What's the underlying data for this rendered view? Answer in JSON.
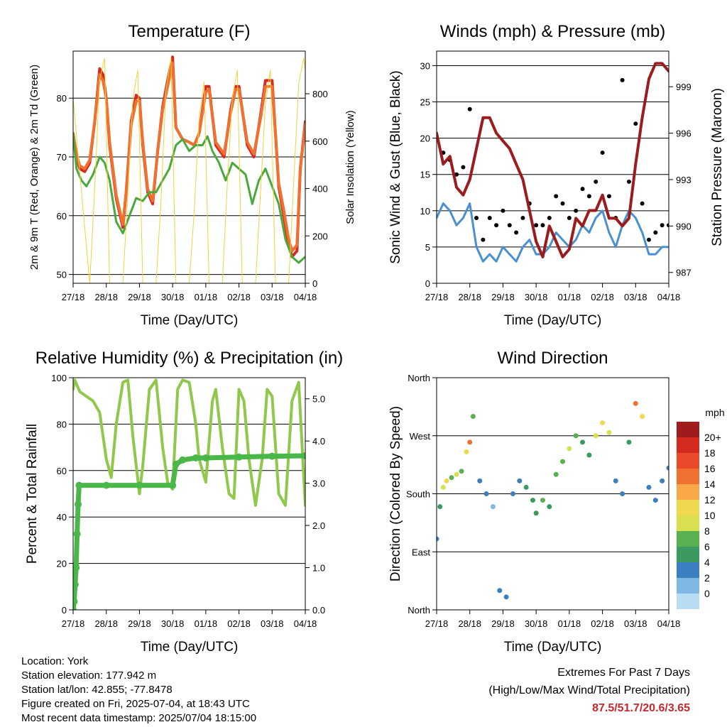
{
  "footer_left": {
    "location": "Location: York",
    "elevation": "Station elevation: 177.942 m",
    "latlon": "Station lat/lon: 42.855; -77.8478",
    "created": "Figure created on Fri, 2025-07-04, at 18:43 UTC",
    "recent": "Most recent data timestamp: 2025/07/04 18:15:00"
  },
  "footer_right": {
    "line1": "Extremes For Past 7 Days",
    "line2": "(High/Low/Max Wind/Total Precipitation)",
    "values": "87.5/51.7/20.6/3.65",
    "values_color": "#c8282d"
  },
  "chart_data": [
    {
      "id": "temperature",
      "type": "line",
      "title": "Temperature (F)",
      "xlabel": "Time (Day/UTC)",
      "ylabel": "2m & 9m T (Red, Orange) & 2m Td (Green)",
      "ylabel_right": "Solar Insolation (Yellow)",
      "x_ticks": [
        "27/18",
        "28/18",
        "29/18",
        "30/18",
        "01/18",
        "02/18",
        "03/18",
        "04/18"
      ],
      "xlim": [
        0,
        7
      ],
      "ylim": [
        48.5,
        88
      ],
      "y_ticks": [
        50,
        60,
        70,
        80
      ],
      "ylim_right": [
        0,
        980
      ],
      "y_ticks_right": [
        0,
        200,
        400,
        600,
        800
      ],
      "grid": "horizontal",
      "series": [
        {
          "name": "2m T",
          "color": "#d42a20",
          "x": [
            0,
            0.1,
            0.2,
            0.35,
            0.5,
            0.65,
            0.8,
            0.9,
            1.0,
            1.1,
            1.3,
            1.5,
            1.6,
            1.75,
            1.9,
            2.0,
            2.1,
            2.25,
            2.4,
            2.55,
            2.7,
            2.85,
            3.0,
            3.1,
            3.3,
            3.5,
            3.65,
            3.8,
            4.0,
            4.1,
            4.2,
            4.3,
            4.55,
            4.75,
            4.9,
            5.0,
            5.1,
            5.25,
            5.45,
            5.65,
            5.8,
            6.0,
            6.1,
            6.2,
            6.35,
            6.5,
            6.6,
            6.75,
            6.85,
            7.0
          ],
          "y": [
            74,
            70,
            68,
            67.5,
            69,
            76,
            85,
            84,
            80,
            72,
            63,
            58,
            64,
            76,
            80.5,
            80,
            72,
            64,
            62,
            71,
            78.5,
            83,
            87,
            75,
            73,
            72.5,
            72,
            74,
            82,
            82,
            77,
            72,
            70,
            78,
            82,
            82,
            78,
            72,
            70,
            77,
            83,
            83,
            74,
            65,
            60,
            55,
            53,
            54,
            68,
            76
          ]
        },
        {
          "name": "9m T",
          "color": "#f07030",
          "x": [
            0,
            0.1,
            0.2,
            0.35,
            0.5,
            0.65,
            0.8,
            0.9,
            1.0,
            1.1,
            1.3,
            1.5,
            1.6,
            1.75,
            1.9,
            2.0,
            2.1,
            2.25,
            2.4,
            2.55,
            2.7,
            2.85,
            3.0,
            3.1,
            3.3,
            3.5,
            3.65,
            3.8,
            4.0,
            4.1,
            4.2,
            4.3,
            4.55,
            4.75,
            4.9,
            5.0,
            5.1,
            5.25,
            5.45,
            5.65,
            5.8,
            6.0,
            6.1,
            6.2,
            6.35,
            6.5,
            6.6,
            6.75,
            6.85,
            7.0
          ],
          "y": [
            74,
            70.5,
            68.5,
            68,
            69.5,
            76,
            84,
            83,
            80,
            72.5,
            63.5,
            58.5,
            64,
            75.5,
            79.5,
            79.5,
            72.5,
            64.5,
            62.5,
            71,
            78,
            82,
            86,
            75,
            73,
            72.5,
            72,
            74,
            81,
            81.5,
            77,
            72.5,
            70.5,
            77.5,
            81.5,
            81.5,
            78,
            72.5,
            70.5,
            76.5,
            82,
            82,
            74,
            65.5,
            61,
            56,
            54,
            55,
            68,
            75.5
          ]
        },
        {
          "name": "2m Td",
          "color": "#4aa83c",
          "x": [
            0,
            0.1,
            0.25,
            0.4,
            0.6,
            0.8,
            0.95,
            1.1,
            1.3,
            1.5,
            1.7,
            1.9,
            2.1,
            2.3,
            2.5,
            2.7,
            2.9,
            3.0,
            3.1,
            3.3,
            3.5,
            3.7,
            3.9,
            4.05,
            4.2,
            4.4,
            4.6,
            4.8,
            5.0,
            5.2,
            5.4,
            5.6,
            5.8,
            6.0,
            6.2,
            6.4,
            6.6,
            6.8,
            7.0
          ],
          "y": [
            74,
            68,
            66,
            65,
            67,
            70,
            69,
            66,
            59,
            57,
            60,
            63,
            62.5,
            64,
            64,
            66,
            68,
            70,
            72,
            73,
            71,
            72,
            72,
            73.5,
            71,
            69,
            66,
            69,
            68,
            67,
            62,
            66,
            68,
            65,
            62,
            56,
            53,
            52,
            53
          ]
        },
        {
          "name": "Solar Insolation",
          "color": "#f2d33a",
          "axis": "right",
          "description": "daily diurnal peaks ~950 W/m2",
          "x": [
            0,
            0.5,
            0.65,
            0.8,
            0.95,
            1.1,
            1.5,
            1.65,
            1.8,
            1.95,
            2.1,
            2.5,
            2.65,
            2.8,
            2.95,
            3.1,
            3.5,
            3.65,
            3.8,
            3.95,
            4.1,
            4.5,
            4.65,
            4.8,
            4.95,
            5.1,
            5.5,
            5.65,
            5.8,
            5.95,
            6.1,
            6.5,
            6.65,
            6.8,
            6.95,
            7.0
          ],
          "y": [
            780,
            0,
            400,
            860,
            950,
            0,
            0,
            380,
            780,
            900,
            0,
            0,
            350,
            820,
            950,
            0,
            0,
            300,
            700,
            850,
            0,
            0,
            420,
            780,
            900,
            0,
            0,
            380,
            760,
            900,
            0,
            0,
            430,
            840,
            950,
            900
          ]
        }
      ]
    },
    {
      "id": "winds",
      "type": "scatter",
      "title": "Winds (mph) & Pressure (mb)",
      "xlabel": "Time (Day/UTC)",
      "ylabel": "Sonic Wind & Gust (Blue, Black)",
      "ylabel_right": "Station Pressure (Maroon)",
      "x_ticks": [
        "27/18",
        "28/18",
        "29/18",
        "30/18",
        "01/18",
        "02/18",
        "03/18",
        "04/18"
      ],
      "xlim": [
        0,
        7
      ],
      "ylim": [
        0,
        32
      ],
      "y_ticks": [
        0,
        5,
        10,
        15,
        20,
        25,
        30
      ],
      "ylim_right": [
        986.3,
        1001.3
      ],
      "y_ticks_right": [
        987,
        990,
        993,
        996,
        999
      ],
      "grid": "horizontal",
      "series": [
        {
          "name": "Sonic Wind",
          "color": "#4a90d0",
          "style": "line",
          "x": [
            0,
            0.2,
            0.4,
            0.6,
            0.8,
            1.0,
            1.2,
            1.4,
            1.6,
            1.8,
            2.0,
            2.2,
            2.4,
            2.6,
            2.8,
            3.0,
            3.2,
            3.4,
            3.6,
            3.8,
            4.0,
            4.2,
            4.4,
            4.6,
            4.8,
            5.0,
            5.2,
            5.4,
            5.6,
            5.8,
            6.0,
            6.2,
            6.4,
            6.6,
            6.8,
            7.0
          ],
          "y": [
            9,
            11,
            10,
            8,
            9,
            11,
            5,
            3,
            4,
            3,
            5,
            4,
            3,
            5,
            6,
            4,
            4,
            5,
            7,
            6,
            5,
            6,
            8,
            7,
            9,
            10,
            7,
            5,
            8,
            10,
            9,
            7,
            4,
            4,
            5,
            5
          ]
        },
        {
          "name": "Gust",
          "color": "#000000",
          "style": "dots",
          "x": [
            0,
            0.2,
            0.4,
            0.6,
            0.8,
            1.0,
            1.2,
            1.4,
            1.6,
            1.8,
            2.0,
            2.2,
            2.4,
            2.6,
            2.8,
            3.0,
            3.2,
            3.4,
            3.6,
            3.8,
            4.0,
            4.2,
            4.4,
            4.6,
            4.8,
            5.0,
            5.2,
            5.4,
            5.6,
            5.8,
            6.0,
            6.2,
            6.4,
            6.6,
            6.8,
            7.0
          ],
          "y": [
            20,
            18,
            17,
            15,
            16,
            24,
            9,
            6,
            9,
            8,
            10,
            8,
            7,
            9,
            11,
            8,
            8,
            9,
            12,
            11,
            9,
            10,
            13,
            12,
            14,
            18,
            12,
            9,
            28,
            14,
            22,
            11,
            6,
            7,
            8,
            8
          ]
        },
        {
          "name": "Station Pressure",
          "color": "#9b1c1c",
          "axis": "right",
          "style": "line",
          "x": [
            0,
            0.2,
            0.4,
            0.6,
            0.8,
            1.0,
            1.2,
            1.4,
            1.6,
            1.8,
            2.0,
            2.2,
            2.4,
            2.6,
            2.8,
            3.0,
            3.2,
            3.4,
            3.6,
            3.8,
            4.0,
            4.2,
            4.4,
            4.6,
            4.8,
            5.0,
            5.2,
            5.4,
            5.6,
            5.8,
            6.0,
            6.2,
            6.4,
            6.6,
            6.8,
            7.0
          ],
          "y": [
            996,
            994,
            994.5,
            992.5,
            992,
            993,
            995,
            997,
            997,
            996,
            995.5,
            995,
            994,
            993,
            991,
            989,
            988,
            990,
            989,
            988,
            988.5,
            990.5,
            990,
            991,
            991,
            992,
            990.5,
            990.5,
            990,
            990.5,
            994,
            997,
            999.5,
            1000.5,
            1000.5,
            1000
          ]
        }
      ]
    },
    {
      "id": "rh_precip",
      "type": "line",
      "title": "Relative Humidity (%) & Precipitation (in)",
      "xlabel": "Time (Day/UTC)",
      "ylabel": "Percent & Total Rainfall",
      "x_ticks": [
        "27/18",
        "28/18",
        "29/18",
        "30/18",
        "01/18",
        "02/18",
        "03/18",
        "04/18"
      ],
      "xlim": [
        0,
        7
      ],
      "ylim": [
        0,
        100
      ],
      "y_ticks": [
        0,
        20,
        40,
        60,
        80,
        100
      ],
      "ylim_right": [
        0,
        5.5
      ],
      "y_ticks_right": [
        "0.0",
        "1.0",
        "2.0",
        "3.0",
        "4.0",
        "5.0"
      ],
      "grid": "horizontal",
      "series": [
        {
          "name": "Relative Humidity",
          "color": "#8fc84a",
          "x": [
            0,
            0.05,
            0.2,
            0.4,
            0.6,
            0.8,
            1.0,
            1.15,
            1.3,
            1.5,
            1.65,
            1.8,
            2.0,
            2.1,
            2.3,
            2.5,
            2.7,
            2.85,
            3.0,
            3.15,
            3.3,
            3.5,
            3.7,
            3.8,
            4.0,
            4.2,
            4.3,
            4.5,
            4.7,
            4.85,
            5.0,
            5.15,
            5.3,
            5.5,
            5.7,
            5.85,
            6.0,
            6.2,
            6.4,
            6.6,
            6.8,
            7.0
          ],
          "y": [
            95,
            99,
            94,
            92,
            90,
            85,
            65,
            57,
            80,
            98,
            99,
            75,
            50,
            62,
            95,
            99,
            70,
            55,
            52,
            95,
            99,
            98,
            80,
            65,
            55,
            90,
            95,
            70,
            50,
            48,
            95,
            90,
            65,
            45,
            65,
            95,
            92,
            50,
            45,
            90,
            98,
            45
          ]
        },
        {
          "name": "Total Precipitation",
          "color": "#4ab848",
          "axis": "right",
          "x": [
            0,
            0.03,
            0.06,
            0.09,
            0.12,
            0.15,
            0.18,
            1.0,
            2.0,
            3.0,
            3.1,
            3.3,
            3.7,
            4.0,
            5.0,
            6.0,
            7.0
          ],
          "y": [
            0,
            0.2,
            0.6,
            1.0,
            1.8,
            2.5,
            2.95,
            2.95,
            2.95,
            2.95,
            3.45,
            3.55,
            3.6,
            3.6,
            3.62,
            3.64,
            3.65
          ]
        }
      ]
    },
    {
      "id": "wind_direction",
      "type": "scatter",
      "title": "Wind Direction",
      "xlabel": "Time (Day/UTC)",
      "ylabel": "Direction (Colored By Speed)",
      "x_ticks": [
        "27/18",
        "28/18",
        "29/18",
        "30/18",
        "01/18",
        "02/18",
        "03/18",
        "04/18"
      ],
      "xlim": [
        0,
        7
      ],
      "ylim": [
        0,
        360
      ],
      "y_ticks": [
        "North",
        "East",
        "South",
        "West",
        "North"
      ],
      "grid": "horizontal",
      "colorbar": {
        "title": "mph",
        "labels": [
          "20+",
          "18",
          "16",
          "14",
          "12",
          "10",
          "8",
          "6",
          "4",
          "2",
          "0"
        ],
        "colors": [
          "#a01b1b",
          "#d42a20",
          "#e84a2a",
          "#f07030",
          "#f8a848",
          "#f0d850",
          "#d8e050",
          "#58b050",
          "#3a9a60",
          "#3a7fc0",
          "#7fb8e4",
          "#b8dcf4"
        ]
      },
      "series": [
        {
          "name": "direction",
          "x": [
            0,
            0.1,
            0.2,
            0.3,
            0.45,
            0.6,
            0.75,
            0.9,
            1.0,
            1.1,
            1.3,
            1.5,
            1.7,
            1.9,
            2.1,
            2.3,
            2.5,
            2.7,
            2.9,
            3.0,
            3.2,
            3.4,
            3.6,
            3.8,
            4.0,
            4.2,
            4.4,
            4.6,
            4.8,
            5.0,
            5.2,
            5.4,
            5.6,
            5.8,
            6.0,
            6.2,
            6.4,
            6.6,
            6.8,
            7.0
          ],
          "y": [
            110,
            160,
            190,
            200,
            205,
            210,
            215,
            245,
            260,
            300,
            200,
            180,
            160,
            30,
            20,
            180,
            200,
            190,
            170,
            150,
            170,
            160,
            210,
            230,
            250,
            270,
            260,
            240,
            270,
            290,
            275,
            200,
            180,
            260,
            320,
            300,
            190,
            170,
            200,
            220
          ],
          "speed": [
            3,
            6,
            10,
            12,
            8,
            9,
            8,
            12,
            15,
            7,
            3,
            3,
            2,
            3,
            4,
            4,
            3,
            5,
            6,
            5,
            7,
            5,
            8,
            7,
            9,
            8,
            6,
            5,
            10,
            12,
            9,
            4,
            4,
            5,
            16,
            12,
            4,
            3,
            3,
            3
          ]
        }
      ]
    }
  ]
}
